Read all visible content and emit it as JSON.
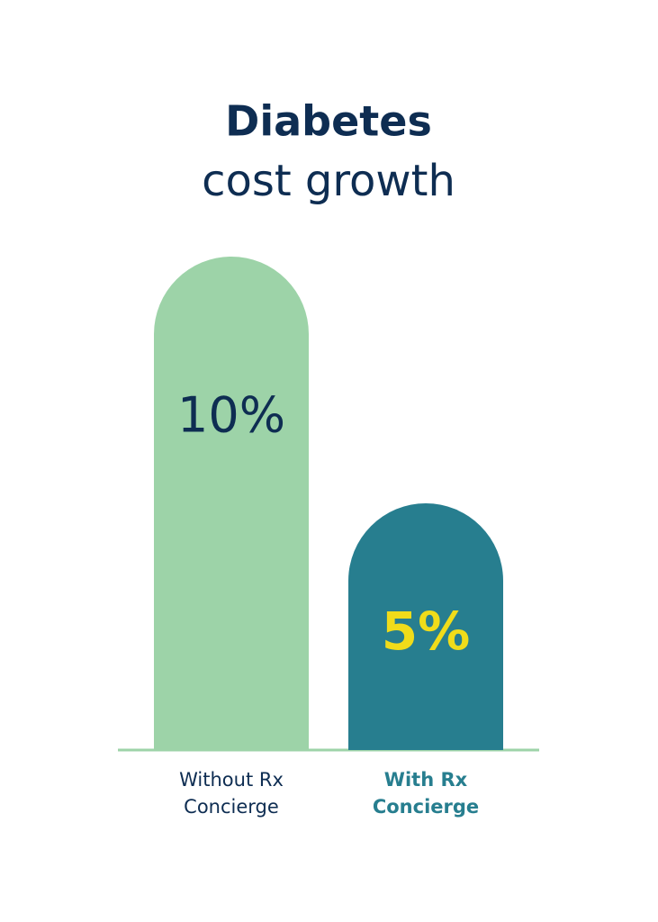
{
  "chart_data": {
    "type": "bar",
    "title": "Diabetes",
    "subtitle": "cost growth",
    "categories": [
      "Without Rx Concierge",
      "With Rx Concierge"
    ],
    "values": [
      10,
      5
    ],
    "value_labels": [
      "10%",
      "5%"
    ],
    "colors": [
      "#9dd3a8",
      "#277e8f"
    ],
    "label_colors": [
      "#0e2d52",
      "#f0dc1a"
    ],
    "category_colors": [
      "#0e2d52",
      "#277e8f"
    ],
    "axis_color": "#9dd3a8",
    "title_color": "#0e2d52"
  }
}
